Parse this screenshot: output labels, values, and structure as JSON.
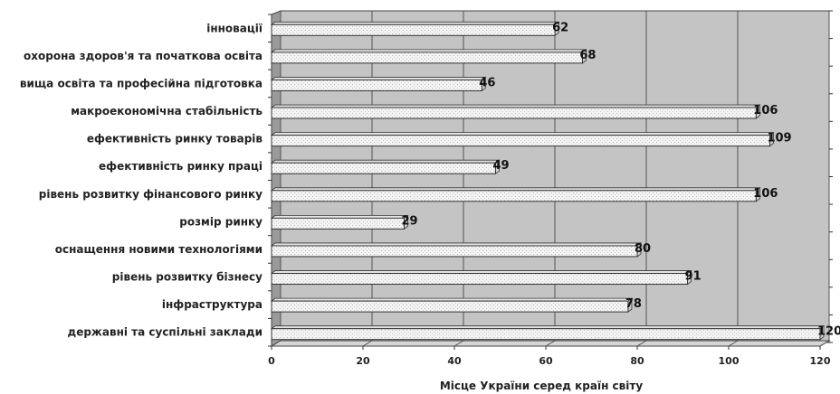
{
  "chart_data": {
    "type": "bar",
    "orientation": "horizontal",
    "categories": [
      "інновації",
      "охорона здоров'я та початкова освіта",
      "вища освіта та професійна підготовка",
      "макроекономічна стабільність",
      "ефективність ринку товарів",
      "ефективність ринку праці",
      "рівень розвитку фінансового ринку",
      "розмір ринку",
      "оснащення новими технологіями",
      "рівень розвитку бізнесу",
      "інфраструктура",
      "державні та суспільні заклади"
    ],
    "values": [
      62,
      68,
      46,
      106,
      109,
      49,
      106,
      29,
      80,
      91,
      78,
      120
    ],
    "xlabel": "Місце України серед країн світу",
    "ylabel": "",
    "xlim": [
      0,
      120
    ],
    "xticks": [
      "0",
      "20",
      "40",
      "60",
      "80",
      "100",
      "120"
    ],
    "grid": true,
    "legend": "none",
    "colors": {
      "plot_bg": "#c4c4c4",
      "side_wall": "#9a9a9a",
      "bar_fill": "#f2f2f2",
      "bar_edge": "#333333",
      "grid": "#555555"
    }
  }
}
